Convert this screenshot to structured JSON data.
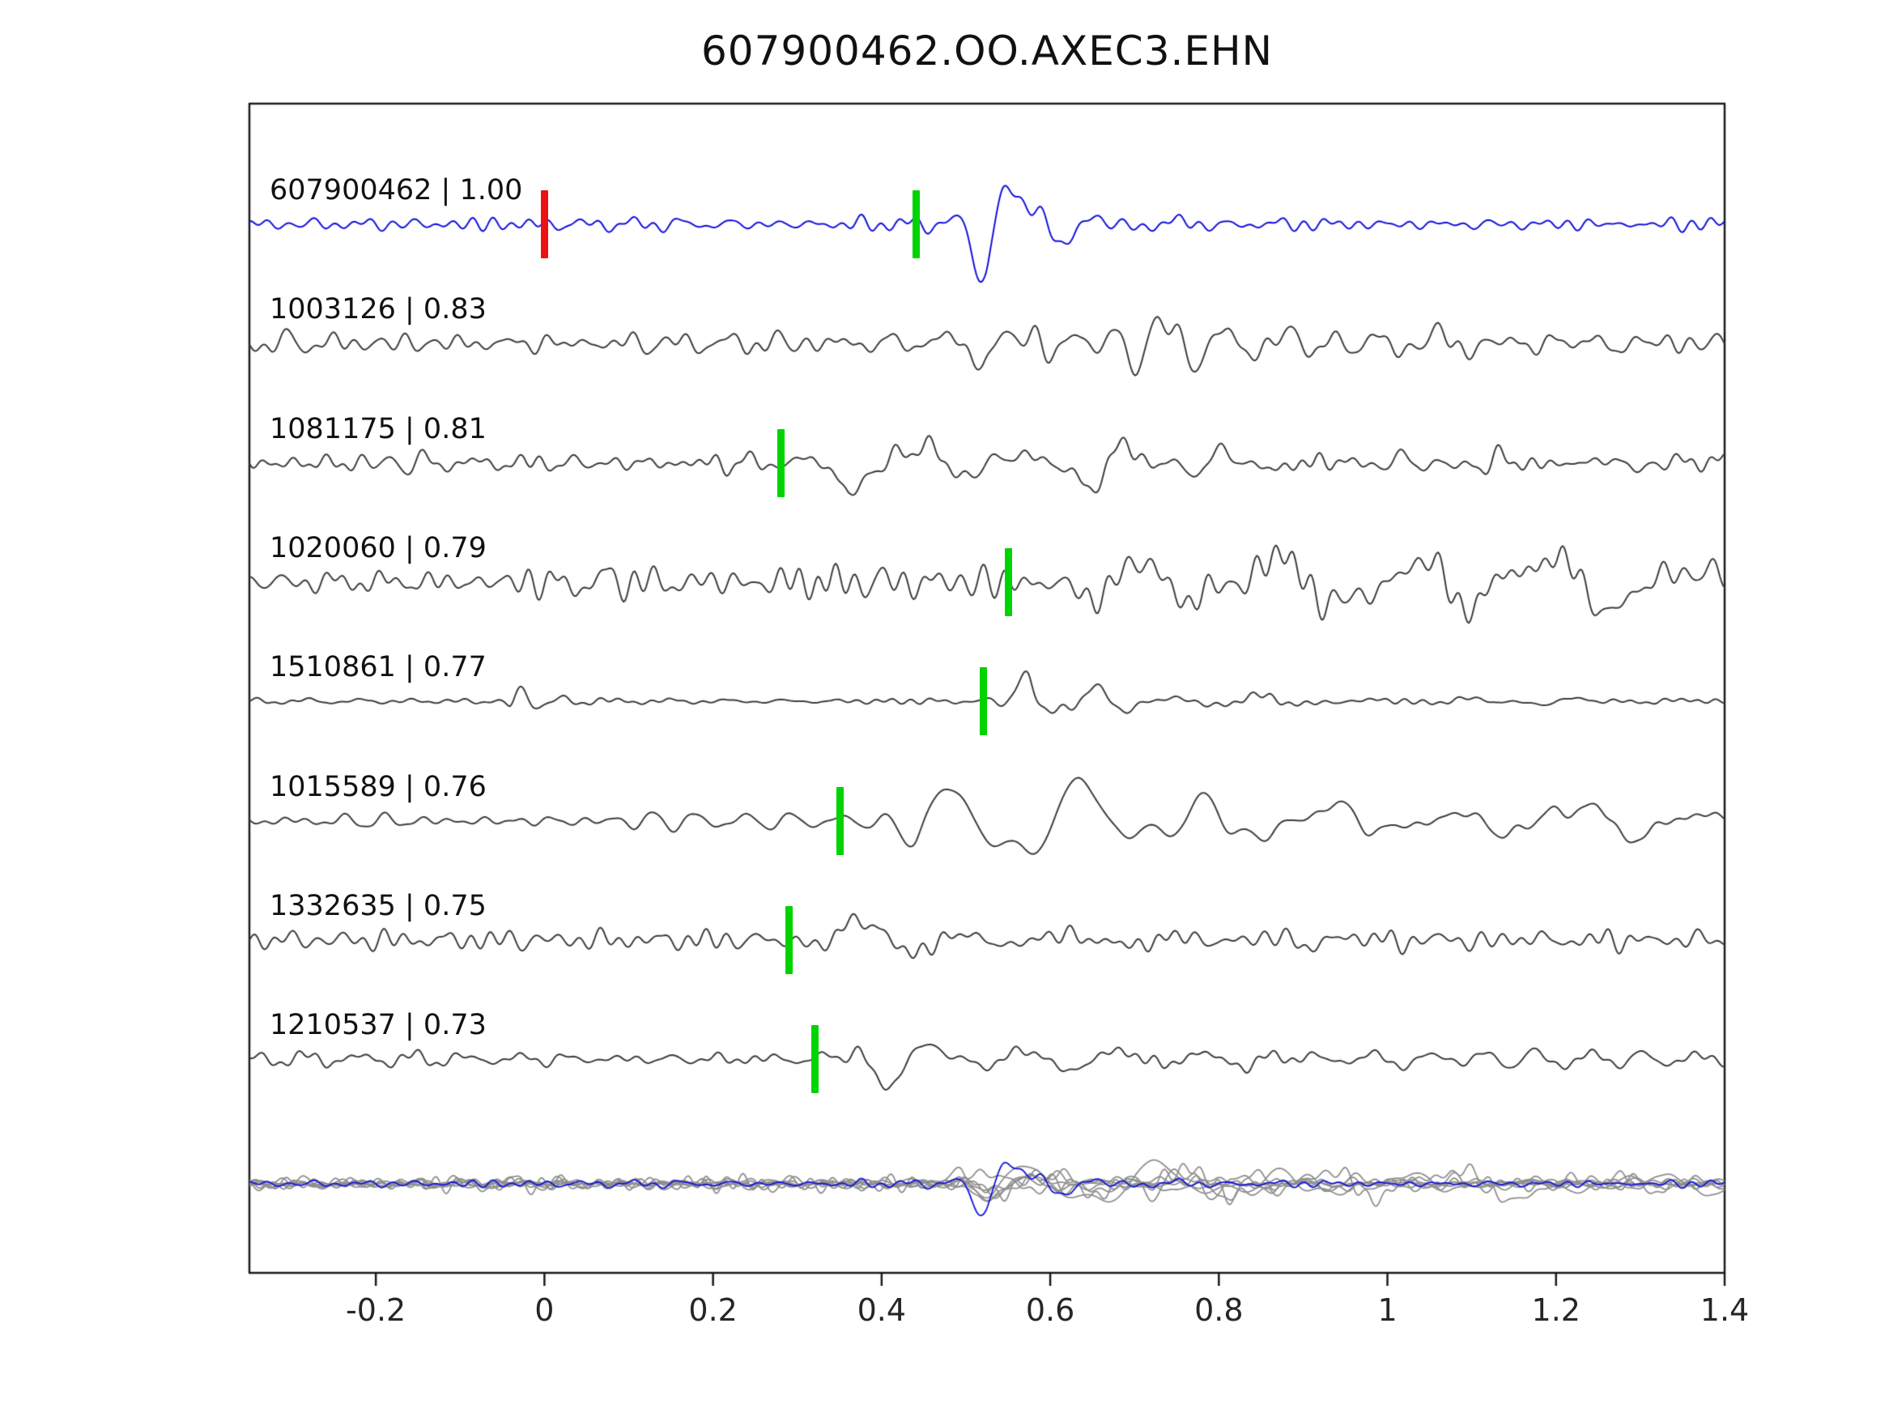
{
  "title": "607900462.OO.AXEC3.EHN",
  "colors": {
    "template_blue": "#1212dd",
    "detection_gray": "#3d3d3d",
    "overlay_gray": "#8f8f8f",
    "pick_green": "#00d400",
    "origin_red": "#ee1111",
    "axis_border": "#1a1a1a"
  },
  "chart_data": {
    "type": "line",
    "title": "607900462.OO.AXEC3.EHN",
    "xlabel": "",
    "ylabel": "",
    "xlim": [
      -0.35,
      1.4
    ],
    "axis": {
      "ticks": [
        -0.2,
        0,
        0.2,
        0.4,
        0.6,
        0.8,
        1,
        1.2,
        1.4
      ],
      "tick_labels": [
        "-0.2",
        "0",
        "0.2",
        "0.4",
        "0.6",
        "0.8",
        "1",
        "1.2",
        "1.4"
      ]
    },
    "description": "Template-matching waveform comparison: blue template trace, gray detection traces with green pick markers, red template-origin marker at t=0, bottom row shows all traces superimposed.",
    "overlay_row": {
      "scale": 0.55,
      "align_to": 0.44
    },
    "traces": [
      {
        "id": "607900462",
        "cc": "1.00",
        "label": "607900462 | 1.00",
        "role": "template",
        "pick": 0.44,
        "red_marker": 0.0,
        "synth": {
          "seed": 11,
          "noise_amp": 9,
          "events": [
            {
              "onset": 0.455,
              "amp": 75,
              "freq": 10.5,
              "rise": 0.07,
              "decay": 0.09
            }
          ]
        }
      },
      {
        "id": "1003126",
        "cc": "0.83",
        "label": "1003126 | 0.83",
        "role": "detection",
        "pick": null,
        "synth": {
          "seed": 23,
          "noise_amp": 13,
          "events": [
            {
              "onset": 0.42,
              "amp": 28,
              "freq": 12,
              "rise": 0.1,
              "decay": 0.5
            },
            {
              "onset": 0.62,
              "amp": 42,
              "freq": 15,
              "rise": 0.05,
              "decay": 0.13
            }
          ]
        }
      },
      {
        "id": "1081175",
        "cc": "0.81",
        "label": "1081175 | 0.81",
        "role": "detection",
        "pick": 0.28,
        "synth": {
          "seed": 37,
          "noise_amp": 12,
          "events": [
            {
              "onset": 0.29,
              "amp": 62,
              "freq": 7.5,
              "rise": 0.07,
              "decay": 0.18
            },
            {
              "onset": 0.55,
              "amp": 18,
              "freq": 9,
              "rise": 0.1,
              "decay": 0.45
            }
          ]
        }
      },
      {
        "id": "1020060",
        "cc": "0.79",
        "label": "1020060 | 0.79",
        "role": "detection",
        "pick": 0.55,
        "synth": {
          "seed": 41,
          "noise_amp": 18,
          "events": [
            {
              "onset": 0.555,
              "amp": 58,
              "freq": 6.2,
              "rise": 0.12,
              "decay": 1.1
            },
            {
              "onset": 0.0,
              "amp": 20,
              "freq": 18,
              "rise": 0.05,
              "decay": 0.22
            }
          ]
        }
      },
      {
        "id": "1510861",
        "cc": "0.77",
        "label": "1510861 | 0.77",
        "role": "detection",
        "pick": 0.52,
        "synth": {
          "seed": 53,
          "noise_amp": 4,
          "events": [
            {
              "onset": 0.525,
              "amp": 64,
              "freq": 11,
              "rise": 0.05,
              "decay": 0.1
            },
            {
              "onset": -0.06,
              "amp": 20,
              "freq": 22,
              "rise": 0.02,
              "decay": 0.045
            },
            {
              "onset": 0.68,
              "amp": 11,
              "freq": 8,
              "rise": 0.1,
              "decay": 0.35
            }
          ]
        }
      },
      {
        "id": "1015589",
        "cc": "0.76",
        "label": "1015589 | 0.76",
        "role": "detection",
        "pick": 0.35,
        "synth": {
          "seed": 67,
          "noise_amp": 11,
          "events": [
            {
              "onset": 0.36,
              "amp": 56,
              "freq": 6.8,
              "rise": 0.08,
              "decay": 0.85
            }
          ]
        }
      },
      {
        "id": "1332635",
        "cc": "0.75",
        "label": "1332635 | 0.75",
        "role": "detection",
        "pick": 0.29,
        "synth": {
          "seed": 71,
          "noise_amp": 10,
          "events": [
            {
              "onset": 0.295,
              "amp": 60,
              "freq": 8.5,
              "rise": 0.05,
              "decay": 0.16
            },
            {
              "onset": 0.55,
              "amp": 13,
              "freq": 10,
              "rise": 0.1,
              "decay": 0.3
            }
          ]
        }
      },
      {
        "id": "1210537",
        "cc": "0.73",
        "label": "1210537 | 0.73",
        "role": "detection",
        "pick": 0.32,
        "synth": {
          "seed": 83,
          "noise_amp": 9,
          "events": [
            {
              "onset": 0.325,
              "amp": 62,
              "freq": 9,
              "rise": 0.05,
              "decay": 0.18
            },
            {
              "onset": 0.6,
              "amp": 12,
              "freq": 10,
              "rise": 0.1,
              "decay": 0.3
            }
          ]
        }
      }
    ]
  }
}
